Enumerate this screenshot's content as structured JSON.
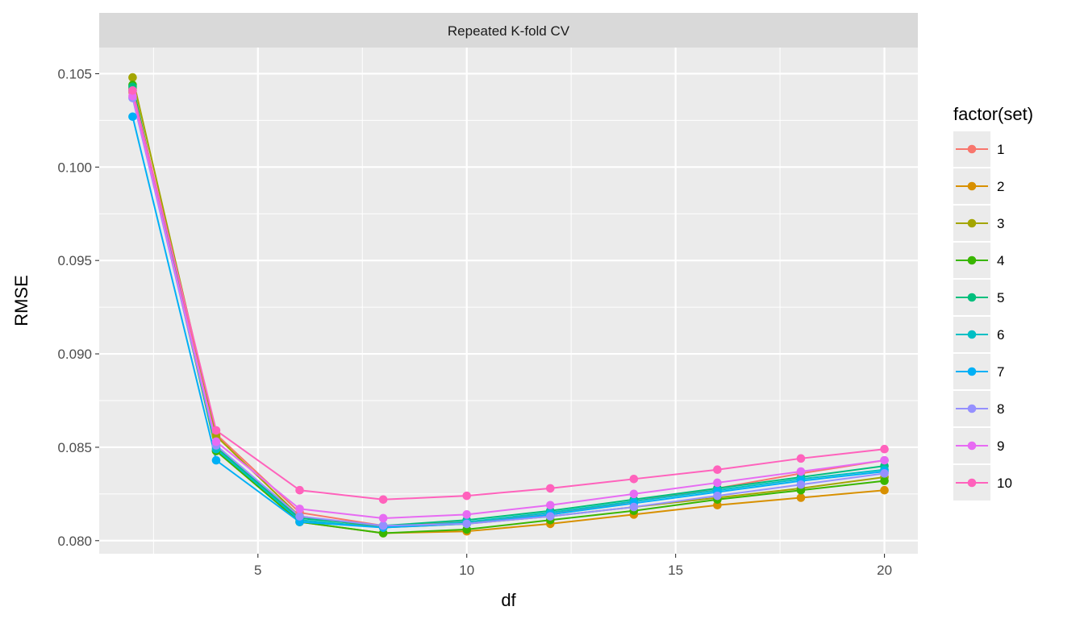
{
  "chart_data": {
    "type": "line",
    "facet_title": "Repeated K-fold CV",
    "xlabel": "df",
    "ylabel": "RMSE",
    "legend_title": "factor(set)",
    "legend_position": "right",
    "grid": true,
    "xlim": [
      1.2,
      20.8
    ],
    "ylim": [
      0.0793,
      0.1064
    ],
    "x_ticks": [
      5,
      10,
      15,
      20
    ],
    "x_tick_labels": [
      "5",
      "10",
      "15",
      "20"
    ],
    "y_ticks": [
      0.08,
      0.085,
      0.09,
      0.095,
      0.1,
      0.105
    ],
    "y_tick_labels": [
      "0.080",
      "0.085",
      "0.090",
      "0.095",
      "0.100",
      "0.105"
    ],
    "x": [
      2,
      4,
      6,
      8,
      10,
      12,
      14,
      16,
      18,
      20
    ],
    "series": [
      {
        "name": "1",
        "color": "#F8766D",
        "values": [
          0.104,
          0.0857,
          0.0815,
          0.0808,
          0.081,
          0.0814,
          0.0821,
          0.0828,
          0.0836,
          0.0843
        ]
      },
      {
        "name": "2",
        "color": "#D89000",
        "values": [
          0.1042,
          0.0848,
          0.081,
          0.0804,
          0.0805,
          0.0809,
          0.0814,
          0.0819,
          0.0823,
          0.0827
        ]
      },
      {
        "name": "3",
        "color": "#A3A500",
        "values": [
          0.1048,
          0.0856,
          0.0813,
          0.0807,
          0.0809,
          0.0813,
          0.0818,
          0.0823,
          0.0828,
          0.0834
        ]
      },
      {
        "name": "4",
        "color": "#39B600",
        "values": [
          0.1044,
          0.0848,
          0.081,
          0.0804,
          0.0806,
          0.0811,
          0.0816,
          0.0822,
          0.0827,
          0.0832
        ]
      },
      {
        "name": "5",
        "color": "#00BF7D",
        "values": [
          0.1043,
          0.085,
          0.0812,
          0.0808,
          0.0811,
          0.0816,
          0.0822,
          0.0828,
          0.0834,
          0.084
        ]
      },
      {
        "name": "6",
        "color": "#00BFC4",
        "values": [
          0.1041,
          0.0849,
          0.0811,
          0.0807,
          0.081,
          0.0815,
          0.0821,
          0.0827,
          0.0833,
          0.0838
        ]
      },
      {
        "name": "7",
        "color": "#00B0F6",
        "values": [
          0.1027,
          0.0843,
          0.081,
          0.0807,
          0.0809,
          0.0814,
          0.082,
          0.0826,
          0.0832,
          0.0837
        ]
      },
      {
        "name": "8",
        "color": "#9590FF",
        "values": [
          0.1037,
          0.0851,
          0.0813,
          0.0808,
          0.0809,
          0.0813,
          0.0818,
          0.0824,
          0.083,
          0.0836
        ]
      },
      {
        "name": "9",
        "color": "#E76BF3",
        "values": [
          0.1038,
          0.0853,
          0.0817,
          0.0812,
          0.0814,
          0.0819,
          0.0825,
          0.0831,
          0.0837,
          0.0843
        ]
      },
      {
        "name": "10",
        "color": "#FF62BC",
        "values": [
          0.1041,
          0.0859,
          0.0827,
          0.0822,
          0.0824,
          0.0828,
          0.0833,
          0.0838,
          0.0844,
          0.0849
        ]
      }
    ]
  }
}
